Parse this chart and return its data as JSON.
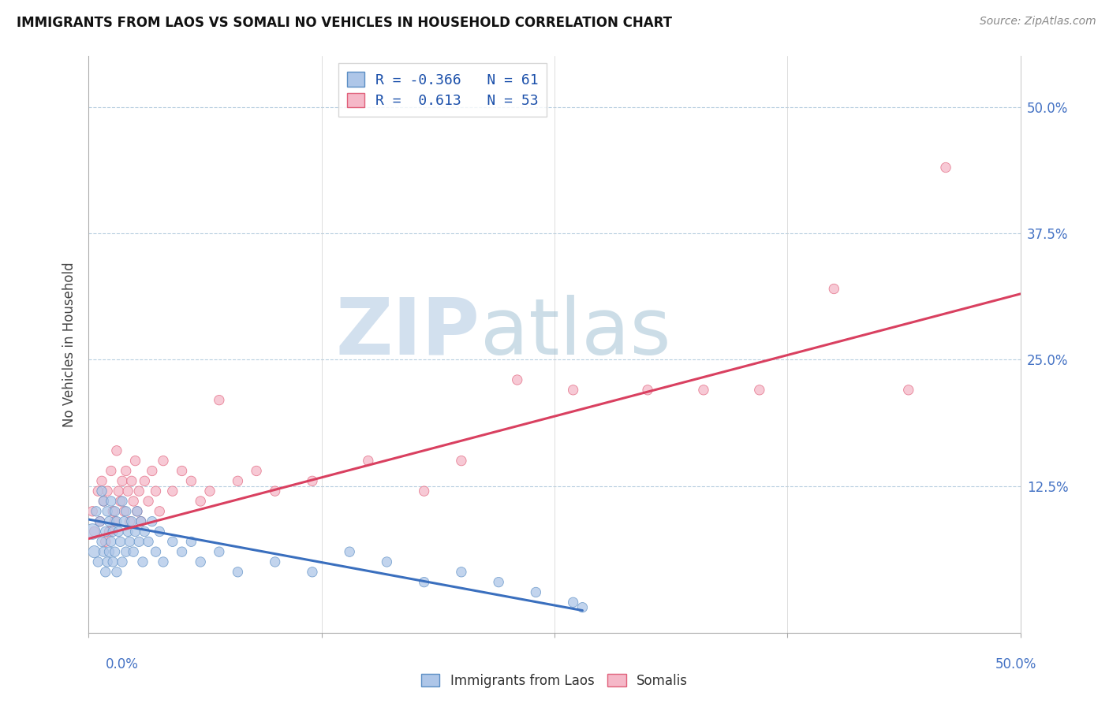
{
  "title": "IMMIGRANTS FROM LAOS VS SOMALI NO VEHICLES IN HOUSEHOLD CORRELATION CHART",
  "source": "Source: ZipAtlas.com",
  "ylabel": "No Vehicles in Household",
  "ytick_vals": [
    0.0,
    0.125,
    0.25,
    0.375,
    0.5
  ],
  "ytick_labels": [
    "",
    "12.5%",
    "25.0%",
    "37.5%",
    "50.0%"
  ],
  "xtick_labels_show": [
    "0.0%",
    "50.0%"
  ],
  "xlim": [
    0.0,
    0.5
  ],
  "ylim": [
    -0.02,
    0.55
  ],
  "legend_line1": "R = -0.366   N = 61",
  "legend_line2": "R =  0.613   N = 53",
  "blue_color": "#aec6e8",
  "pink_color": "#f5b8c8",
  "blue_edge_color": "#5b8ec4",
  "pink_edge_color": "#e0607a",
  "blue_line_color": "#3a6fbe",
  "pink_line_color": "#d94060",
  "watermark_zip": "ZIP",
  "watermark_atlas": "atlas",
  "watermark_color": "#c8d8ea",
  "blue_trend_x": [
    0.0,
    0.265
  ],
  "blue_trend_y": [
    0.092,
    0.002
  ],
  "pink_trend_x": [
    0.0,
    0.5
  ],
  "pink_trend_y": [
    0.073,
    0.315
  ],
  "blue_scatter_x": [
    0.002,
    0.003,
    0.004,
    0.005,
    0.006,
    0.007,
    0.007,
    0.008,
    0.008,
    0.009,
    0.009,
    0.01,
    0.01,
    0.011,
    0.011,
    0.012,
    0.012,
    0.013,
    0.013,
    0.014,
    0.014,
    0.015,
    0.015,
    0.016,
    0.017,
    0.018,
    0.018,
    0.019,
    0.02,
    0.02,
    0.021,
    0.022,
    0.023,
    0.024,
    0.025,
    0.026,
    0.027,
    0.028,
    0.029,
    0.03,
    0.032,
    0.034,
    0.036,
    0.038,
    0.04,
    0.045,
    0.05,
    0.055,
    0.06,
    0.07,
    0.08,
    0.1,
    0.12,
    0.14,
    0.16,
    0.18,
    0.2,
    0.22,
    0.24,
    0.26,
    0.265
  ],
  "blue_scatter_y": [
    0.08,
    0.06,
    0.1,
    0.05,
    0.09,
    0.12,
    0.07,
    0.11,
    0.06,
    0.08,
    0.04,
    0.1,
    0.05,
    0.09,
    0.06,
    0.11,
    0.07,
    0.08,
    0.05,
    0.1,
    0.06,
    0.09,
    0.04,
    0.08,
    0.07,
    0.11,
    0.05,
    0.09,
    0.1,
    0.06,
    0.08,
    0.07,
    0.09,
    0.06,
    0.08,
    0.1,
    0.07,
    0.09,
    0.05,
    0.08,
    0.07,
    0.09,
    0.06,
    0.08,
    0.05,
    0.07,
    0.06,
    0.07,
    0.05,
    0.06,
    0.04,
    0.05,
    0.04,
    0.06,
    0.05,
    0.03,
    0.04,
    0.03,
    0.02,
    0.01,
    0.005
  ],
  "blue_scatter_s": [
    200,
    120,
    80,
    80,
    80,
    80,
    80,
    80,
    80,
    80,
    80,
    80,
    80,
    80,
    80,
    80,
    80,
    80,
    80,
    80,
    80,
    80,
    80,
    80,
    80,
    80,
    80,
    80,
    80,
    80,
    80,
    80,
    80,
    80,
    80,
    80,
    80,
    80,
    80,
    80,
    80,
    80,
    80,
    80,
    80,
    80,
    80,
    80,
    80,
    80,
    80,
    80,
    80,
    80,
    80,
    80,
    80,
    80,
    80,
    80,
    80
  ],
  "pink_scatter_x": [
    0.002,
    0.003,
    0.005,
    0.006,
    0.007,
    0.008,
    0.009,
    0.01,
    0.011,
    0.012,
    0.013,
    0.014,
    0.015,
    0.016,
    0.017,
    0.018,
    0.019,
    0.02,
    0.021,
    0.022,
    0.023,
    0.024,
    0.025,
    0.026,
    0.027,
    0.028,
    0.03,
    0.032,
    0.034,
    0.036,
    0.038,
    0.04,
    0.045,
    0.05,
    0.055,
    0.06,
    0.065,
    0.07,
    0.08,
    0.09,
    0.1,
    0.12,
    0.15,
    0.18,
    0.2,
    0.23,
    0.26,
    0.3,
    0.33,
    0.36,
    0.4,
    0.44,
    0.46
  ],
  "pink_scatter_y": [
    0.1,
    0.08,
    0.12,
    0.09,
    0.13,
    0.11,
    0.07,
    0.12,
    0.08,
    0.14,
    0.1,
    0.09,
    0.16,
    0.12,
    0.11,
    0.13,
    0.1,
    0.14,
    0.12,
    0.09,
    0.13,
    0.11,
    0.15,
    0.1,
    0.12,
    0.09,
    0.13,
    0.11,
    0.14,
    0.12,
    0.1,
    0.15,
    0.12,
    0.14,
    0.13,
    0.11,
    0.12,
    0.21,
    0.13,
    0.14,
    0.12,
    0.13,
    0.15,
    0.12,
    0.15,
    0.23,
    0.22,
    0.22,
    0.22,
    0.22,
    0.32,
    0.22,
    0.44
  ],
  "pink_scatter_s": [
    80,
    80,
    80,
    80,
    80,
    80,
    80,
    80,
    80,
    80,
    80,
    80,
    80,
    80,
    80,
    80,
    80,
    80,
    80,
    80,
    80,
    80,
    80,
    80,
    80,
    80,
    80,
    80,
    80,
    80,
    80,
    80,
    80,
    80,
    80,
    80,
    80,
    80,
    80,
    80,
    80,
    80,
    80,
    80,
    80,
    80,
    80,
    80,
    80,
    80,
    80,
    80,
    80
  ]
}
